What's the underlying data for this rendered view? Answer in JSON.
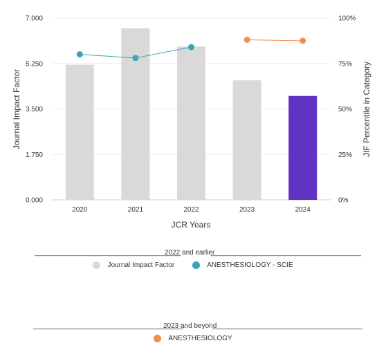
{
  "chart_data": {
    "type": "bar",
    "categories": [
      "2020",
      "2021",
      "2022",
      "2023",
      "2024"
    ],
    "series": [
      {
        "name": "Journal Impact Factor",
        "kind": "bar",
        "axis": "left",
        "values": [
          5.2,
          6.6,
          5.9,
          4.6,
          4.0
        ],
        "colors": [
          "#d9d9d9",
          "#d9d9d9",
          "#d9d9d9",
          "#d9d9d9",
          "#6133c4"
        ]
      },
      {
        "name": "ANESTHESIOLOGY - SCIE",
        "kind": "line",
        "axis": "right",
        "color": "#3aa5b8",
        "x": [
          "2020",
          "2021",
          "2022"
        ],
        "values": [
          80,
          78,
          84
        ]
      },
      {
        "name": "ANESTHESIOLOGY",
        "kind": "line",
        "axis": "right",
        "color": "#f58b56",
        "x": [
          "2023",
          "2024"
        ],
        "values": [
          88,
          87.5
        ]
      }
    ],
    "xlabel": "JCR Years",
    "ylabel": "Journal Impact Factor",
    "y2label": "JIF Percentile in Category",
    "ylim": [
      0,
      7.0
    ],
    "y2lim": [
      0,
      100
    ],
    "yticks": [
      "0.000",
      "1.750",
      "3.500",
      "5.250",
      "7.000"
    ],
    "y2ticks": [
      "0%",
      "25%",
      "50%",
      "75%",
      "100%"
    ],
    "grid": true
  },
  "legend": {
    "group1": {
      "line_left": "______________________________________",
      "title": "2022 and earlier",
      "line_right": "_______________________________________",
      "items": [
        "Journal Impact Factor",
        "ANESTHESIOLOGY - SCIE"
      ]
    },
    "group2": {
      "line_left": "_______________________________________",
      "title": "2023 and beyond",
      "line_right": "_______________________________________",
      "items": [
        "ANESTHESIOLOGY"
      ]
    }
  }
}
